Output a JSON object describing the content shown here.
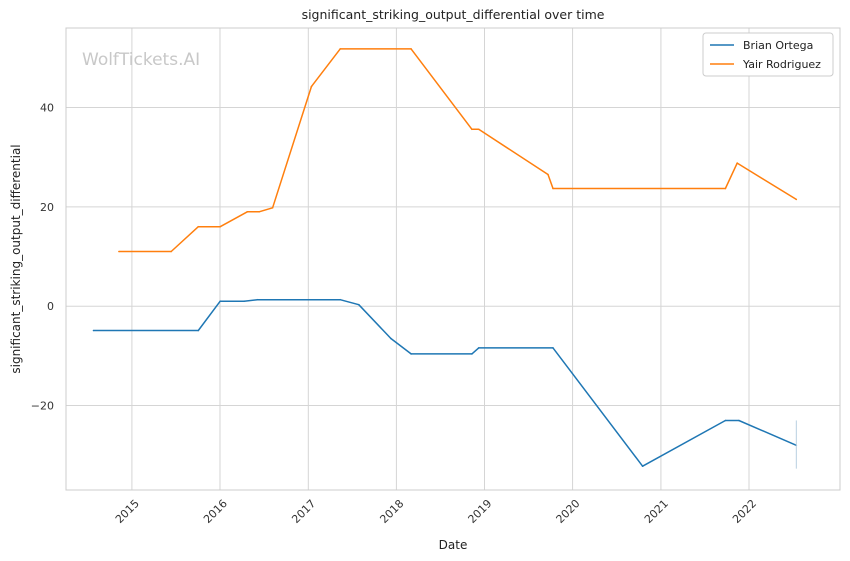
{
  "chart_data": {
    "type": "line",
    "title": "significant_striking_output_differential over time",
    "xlabel": "Date",
    "ylabel": "significant_striking_output_differential",
    "watermark": "WolfTickets.AI",
    "x_ticks": [
      "2015",
      "2016",
      "2017",
      "2018",
      "2019",
      "2020",
      "2021",
      "2022"
    ],
    "y_ticks": [
      -20,
      0,
      20,
      40
    ],
    "xlim": [
      "2014-04-03",
      "2023-01-13"
    ],
    "ylim": [
      -37,
      56
    ],
    "grid": true,
    "legend_position": "top-right",
    "series": [
      {
        "name": "Brian Ortega",
        "color": "#1f77b4",
        "points": [
          [
            "2014-07-26",
            -4.9
          ],
          [
            "2015-10-03",
            -4.9
          ],
          [
            "2016-01-02",
            1.0
          ],
          [
            "2016-04-10",
            1.0
          ],
          [
            "2016-06-04",
            1.3
          ],
          [
            "2017-05-13",
            1.3
          ],
          [
            "2017-07-29",
            0.3
          ],
          [
            "2017-12-09",
            -6.5
          ],
          [
            "2018-03-03",
            -9.6
          ],
          [
            "2018-11-10",
            -9.6
          ],
          [
            "2018-12-08",
            -8.4
          ],
          [
            "2019-10-12",
            -8.4
          ],
          [
            "2020-10-17",
            -32.2
          ],
          [
            "2021-09-25",
            -23.0
          ],
          [
            "2021-11-20",
            -23.0
          ],
          [
            "2022-07-16",
            -28.0
          ]
        ]
      },
      {
        "name": "Yair Rodriguez",
        "color": "#ff7f0e",
        "points": [
          [
            "2014-11-08",
            11.0
          ],
          [
            "2015-06-13",
            11.0
          ],
          [
            "2015-10-03",
            16.0
          ],
          [
            "2016-01-02",
            16.0
          ],
          [
            "2016-04-23",
            19.0
          ],
          [
            "2016-06-11",
            19.0
          ],
          [
            "2016-08-06",
            19.8
          ],
          [
            "2017-01-14",
            44.2
          ],
          [
            "2017-05-13",
            51.8
          ],
          [
            "2018-03-03",
            51.8
          ],
          [
            "2018-11-10",
            35.6
          ],
          [
            "2018-12-08",
            35.6
          ],
          [
            "2019-09-21",
            26.5
          ],
          [
            "2019-10-12",
            23.7
          ],
          [
            "2021-09-25",
            23.7
          ],
          [
            "2021-11-13",
            28.8
          ],
          [
            "2022-07-16",
            21.5
          ]
        ]
      }
    ],
    "markers": [
      {
        "x": "2022-07-16",
        "y_range": [
          -32.7,
          -23.0
        ],
        "color": "#b8cfe0"
      }
    ]
  }
}
